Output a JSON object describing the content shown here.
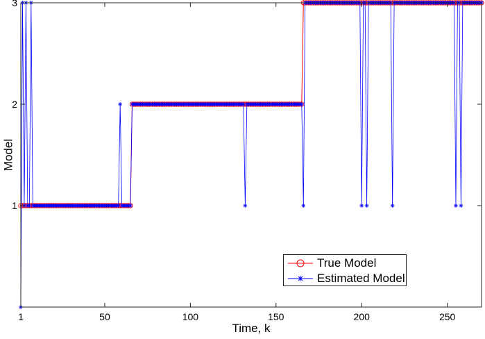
{
  "chart_data": {
    "type": "line",
    "xlabel": "Time, k",
    "ylabel": "Model",
    "xlim": [
      1,
      270
    ],
    "ylim": [
      0,
      3
    ],
    "xticks": [
      1,
      50,
      100,
      150,
      200,
      250
    ],
    "yticks": [
      1,
      2,
      3
    ],
    "grid": false,
    "legend_position": "bottom-right",
    "series": [
      {
        "name": "True Model",
        "color": "#ff0000",
        "marker": "circle",
        "segments": [
          {
            "x_start": 1,
            "x_end": 1,
            "value": 1
          },
          {
            "x_start": 2,
            "x_end": 65,
            "value": 1
          },
          {
            "x_start": 66,
            "x_end": 165,
            "value": 2
          },
          {
            "x_start": 166,
            "x_end": 270,
            "value": 3
          }
        ]
      },
      {
        "name": "Estimated Model",
        "color": "#0000ff",
        "marker": "star",
        "default_by_range": [
          {
            "x_start": 1,
            "x_end": 65,
            "value": 1
          },
          {
            "x_start": 66,
            "x_end": 165,
            "value": 2
          },
          {
            "x_start": 166,
            "x_end": 270,
            "value": 3
          }
        ],
        "overrides": [
          {
            "x": 1,
            "value": 0
          },
          {
            "x": 2,
            "value": 3
          },
          {
            "x": 4,
            "value": 3
          },
          {
            "x": 7,
            "value": 3
          },
          {
            "x": 59,
            "value": 2
          },
          {
            "x": 132,
            "value": 1
          },
          {
            "x": 166,
            "value": 1
          },
          {
            "x": 200,
            "value": 1
          },
          {
            "x": 203,
            "value": 1
          },
          {
            "x": 218,
            "value": 1
          },
          {
            "x": 255,
            "value": 1
          },
          {
            "x": 258,
            "value": 1
          }
        ]
      }
    ]
  }
}
